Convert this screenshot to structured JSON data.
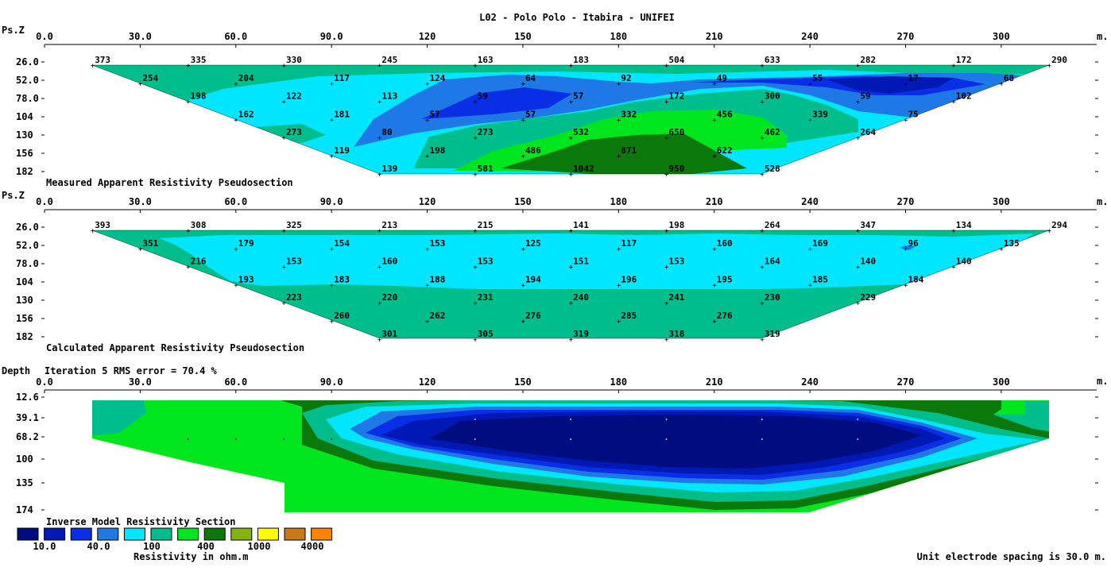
{
  "title": "L02 - Polo Polo - Itabira - UNIFEI",
  "footer_note": "Unit electrode spacing is 30.0 m.",
  "colors": {
    "scale": [
      "#000c80",
      "#0019b4",
      "#0a2ee6",
      "#1e78e6",
      "#00e6ff",
      "#00be8c",
      "#00e61e",
      "#0a780a",
      "#82b40a",
      "#ffff00",
      "#c87814",
      "#ff8200"
    ],
    "contour_bounds": [
      20,
      40,
      100,
      300,
      500,
      1000
    ]
  },
  "chart_data": [
    {
      "type": "heatmap",
      "name": "measured",
      "title": "Measured Apparent Resistivity Pseudosection",
      "xlabel": "m.",
      "ylabel": "Ps.Z",
      "xlim": [
        0,
        330
      ],
      "x_ticks": [
        "0.0",
        "30.0",
        "60.0",
        "90.0",
        "120",
        "150",
        "180",
        "210",
        "240",
        "270",
        "300"
      ],
      "y_ticks": [
        "26.0",
        "52.0",
        "78.0",
        "104",
        "130",
        "156",
        "182"
      ],
      "levels": [
        {
          "depth": 26,
          "x0": 15,
          "dx": 30,
          "values": [
            373,
            335,
            330,
            245,
            163,
            183,
            504,
            633,
            282,
            172,
            290
          ]
        },
        {
          "depth": 52,
          "x0": 30,
          "dx": 30,
          "values": [
            254,
            204,
            117,
            124,
            64,
            92,
            49,
            55,
            17,
            68
          ]
        },
        {
          "depth": 78,
          "x0": 45,
          "dx": 30,
          "values": [
            198,
            122,
            113,
            59,
            57,
            172,
            300,
            59,
            102
          ]
        },
        {
          "depth": 104,
          "x0": 60,
          "dx": 30,
          "values": [
            162,
            181,
            57,
            57,
            332,
            456,
            339,
            75
          ]
        },
        {
          "depth": 130,
          "x0": 75,
          "dx": 30,
          "values": [
            273,
            80,
            273,
            532,
            650,
            462,
            264
          ]
        },
        {
          "depth": 156,
          "x0": 90,
          "dx": 30,
          "values": [
            119,
            198,
            486,
            871,
            622
          ]
        },
        {
          "depth": 182,
          "x0": 105,
          "dx": 30,
          "values": [
            139,
            581,
            1042,
            950,
            528
          ]
        }
      ]
    },
    {
      "type": "heatmap",
      "name": "calculated",
      "title": "Calculated Apparent Resistivity Pseudosection",
      "xlabel": "m.",
      "ylabel": "Ps.Z",
      "xlim": [
        0,
        330
      ],
      "x_ticks": [
        "0.0",
        "30.0",
        "60.0",
        "90.0",
        "120",
        "150",
        "180",
        "210",
        "240",
        "270",
        "300"
      ],
      "y_ticks": [
        "26.0",
        "52.0",
        "78.0",
        "104",
        "130",
        "156",
        "182"
      ],
      "levels": [
        {
          "depth": 26,
          "x0": 15,
          "dx": 30,
          "values": [
            393,
            308,
            325,
            213,
            215,
            141,
            198,
            264,
            347,
            134,
            294
          ]
        },
        {
          "depth": 52,
          "x0": 30,
          "dx": 30,
          "values": [
            351,
            179,
            154,
            153,
            125,
            117,
            160,
            169,
            96,
            135
          ]
        },
        {
          "depth": 78,
          "x0": 45,
          "dx": 30,
          "values": [
            216,
            153,
            160,
            153,
            151,
            153,
            164,
            140,
            140
          ]
        },
        {
          "depth": 104,
          "x0": 60,
          "dx": 30,
          "values": [
            193,
            183,
            188,
            194,
            196,
            195,
            185,
            184
          ]
        },
        {
          "depth": 130,
          "x0": 75,
          "dx": 30,
          "values": [
            223,
            220,
            231,
            240,
            241,
            230,
            229
          ]
        },
        {
          "depth": 156,
          "x0": 90,
          "dx": 30,
          "values": [
            260,
            262,
            276,
            285,
            276
          ]
        },
        {
          "depth": 182,
          "x0": 105,
          "dx": 30,
          "values": [
            301,
            305,
            319,
            318,
            319
          ]
        }
      ]
    },
    {
      "type": "heatmap",
      "name": "inverse",
      "title": "Inverse Model Resistivity Section",
      "subtitle": "Iteration 5 RMS error = 70.4 %",
      "xlabel": "m.",
      "ylabel": "Depth",
      "xlim": [
        0,
        330
      ],
      "x_ticks": [
        "0.0",
        "30.0",
        "60.0",
        "90.0",
        "120",
        "150",
        "180",
        "210",
        "240",
        "270",
        "300"
      ],
      "y_ticks": [
        "12.6",
        "39.1",
        "68.2",
        "100",
        "135",
        "174"
      ],
      "colorbar_labels": [
        "10.0",
        "40.0",
        "100",
        "400",
        "1000",
        "4000"
      ],
      "colorbar_title": "Resistivity in ohm.m"
    }
  ]
}
